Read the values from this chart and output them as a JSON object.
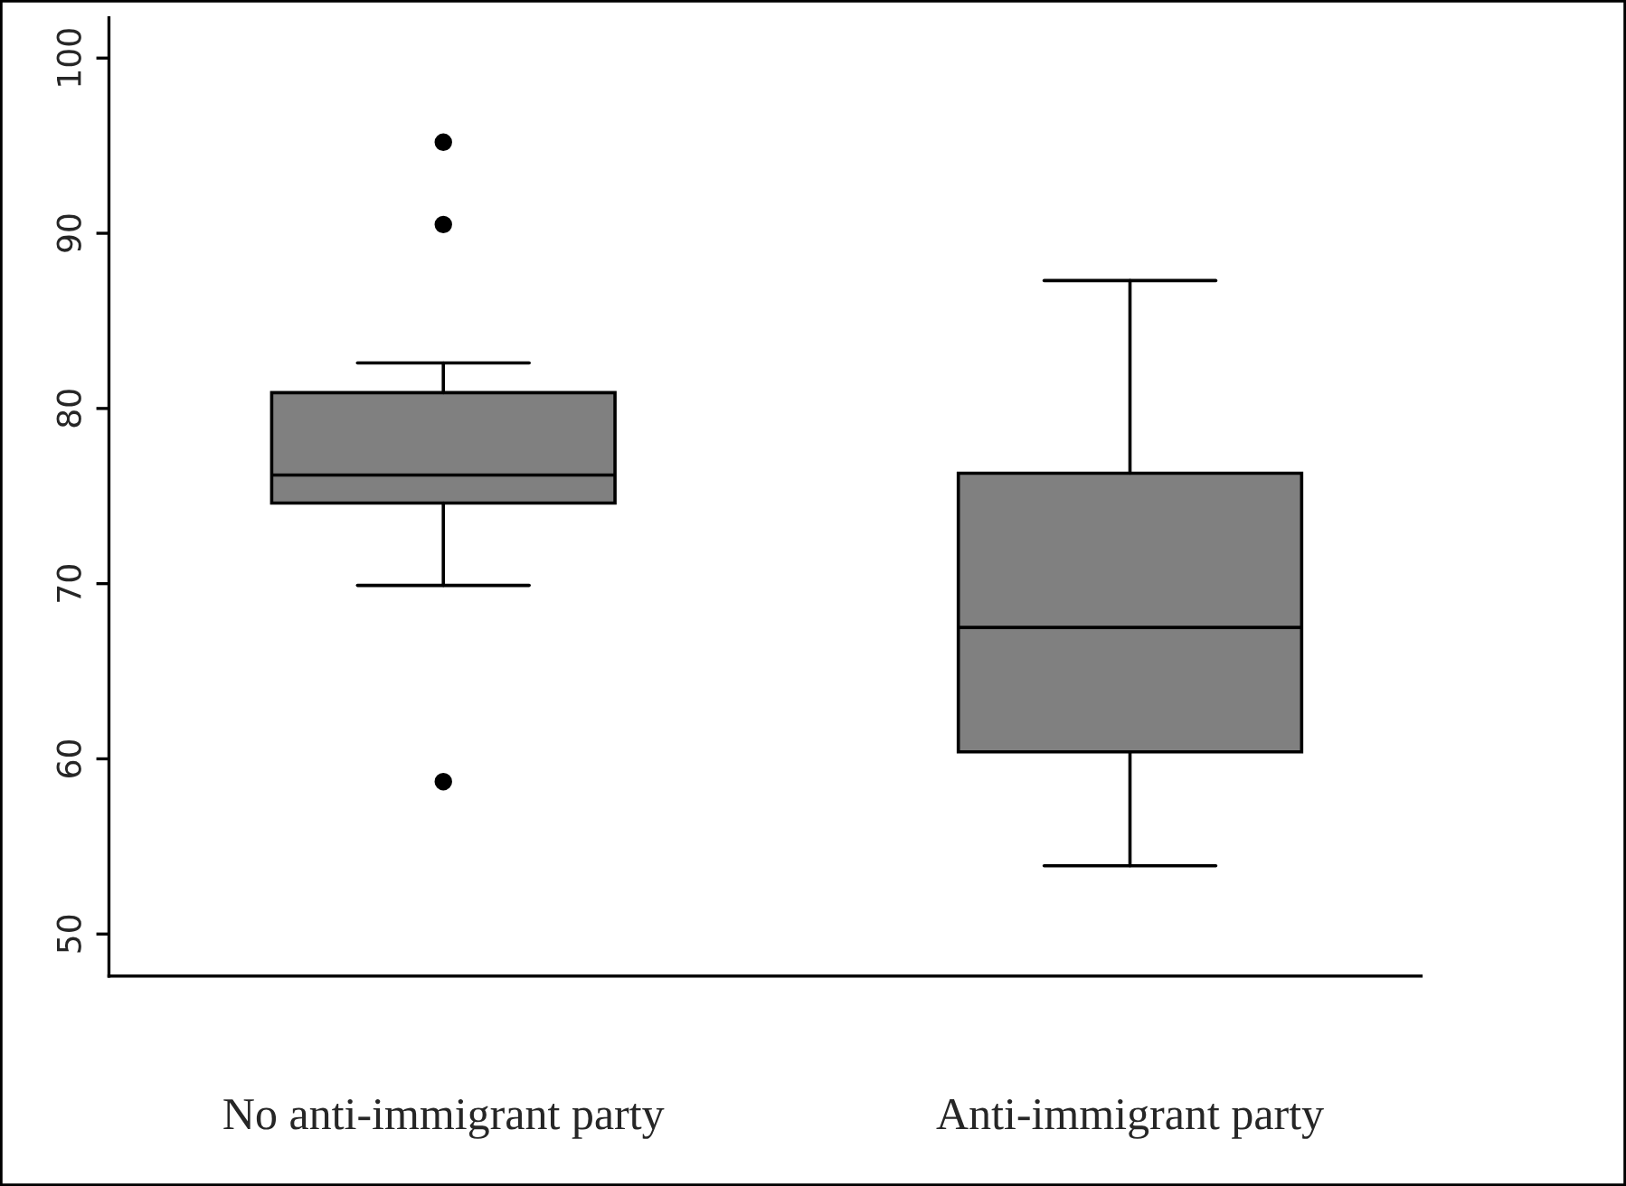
{
  "chart_data": {
    "type": "box",
    "categories": [
      "No anti-immigrant party",
      "Anti-immigrant party"
    ],
    "boxes": [
      {
        "low": 69.9,
        "q1": 74.6,
        "median": 76.2,
        "q3": 80.9,
        "high": 82.6,
        "outliers": [
          95.2,
          90.5,
          58.7
        ]
      },
      {
        "low": 53.9,
        "q1": 60.4,
        "median": 67.5,
        "q3": 76.3,
        "high": 87.3
      }
    ],
    "colors": [
      "#808080",
      "#808080"
    ],
    "ylim": [
      47.6,
      102.3
    ],
    "yticks": [
      50,
      60,
      70,
      80,
      90,
      100
    ],
    "grid": false
  }
}
